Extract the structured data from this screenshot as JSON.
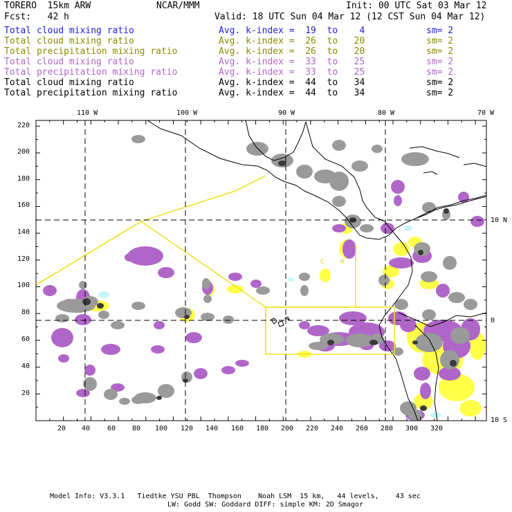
{
  "header": {
    "model": "TORERO  15km ARW",
    "center": "NCAR/MMM",
    "init": "Init: 00 UTC Sat 03 Mar 12",
    "fcst": "Fcst:   42 h",
    "valid": "Valid: 18 UTC Sun 04 Mar 12 (12 CST Sun 04 Mar 12)"
  },
  "legend": [
    {
      "field": "Total cloud mixing ratio",
      "kindex": "Avg. k-index =  19  to    4",
      "sm": "sm= 2",
      "color": "#1f1fd6"
    },
    {
      "field": "Total cloud mixing ratio",
      "kindex": "Avg. k-index =  26  to   20",
      "sm": "sm= 2",
      "color": "#8c8a00"
    },
    {
      "field": "Total precipitation mixing ratio",
      "kindex": "Avg. k-index =  26  to   20",
      "sm": "sm= 2",
      "color": "#8c8a00"
    },
    {
      "field": "Total cloud mixing ratio",
      "kindex": "Avg. k-index =  33  to   25",
      "sm": "sm= 2",
      "color": "#b066c8"
    },
    {
      "field": "Total precipitation mixing ratio",
      "kindex": "Avg. k-index =  33  to   25",
      "sm": "sm= 2",
      "color": "#b066c8"
    },
    {
      "field": "Total cloud mixing ratio",
      "kindex": "Avg. k-index =  44  to   34",
      "sm": "sm= 2",
      "color": "#000000"
    },
    {
      "field": "Total precipitation mixing ratio",
      "kindex": "Avg. k-index =  44  to   34",
      "sm": "sm= 2",
      "color": "#000000"
    }
  ],
  "map": {
    "top_lon_labels": [
      "110 W",
      "100 W",
      "90 W",
      "80 W",
      "70 W"
    ],
    "right_lat_labels": [
      "10 N",
      "0",
      "10 S"
    ],
    "x_ticks": [
      "20",
      "40",
      "60",
      "80",
      "100",
      "120",
      "140",
      "160",
      "180",
      "200",
      "220",
      "240",
      "260",
      "280",
      "300",
      "320"
    ],
    "y_ticks": [
      "220",
      "200",
      "180",
      "160",
      "140",
      "120",
      "100",
      "80",
      "60",
      "40",
      "20"
    ],
    "region_labels": [
      "C",
      "R"
    ],
    "colors": {
      "gray": "#9a9a9a",
      "dark": "#3a3a3a",
      "purple": "#b066c8",
      "yellow": "#ffff4a",
      "cyan": "#c8f4ff",
      "boundary": "#f0e020"
    }
  },
  "footer": {
    "line1": "Model Info: V3.3.1   Tiedtke YSU PBL  Thompson    Noah LSM  15 km,   44 levels,    43 sec",
    "line2": "LW: Godd SW: Goddard DIFF: simple KM: 2D Smagor"
  }
}
